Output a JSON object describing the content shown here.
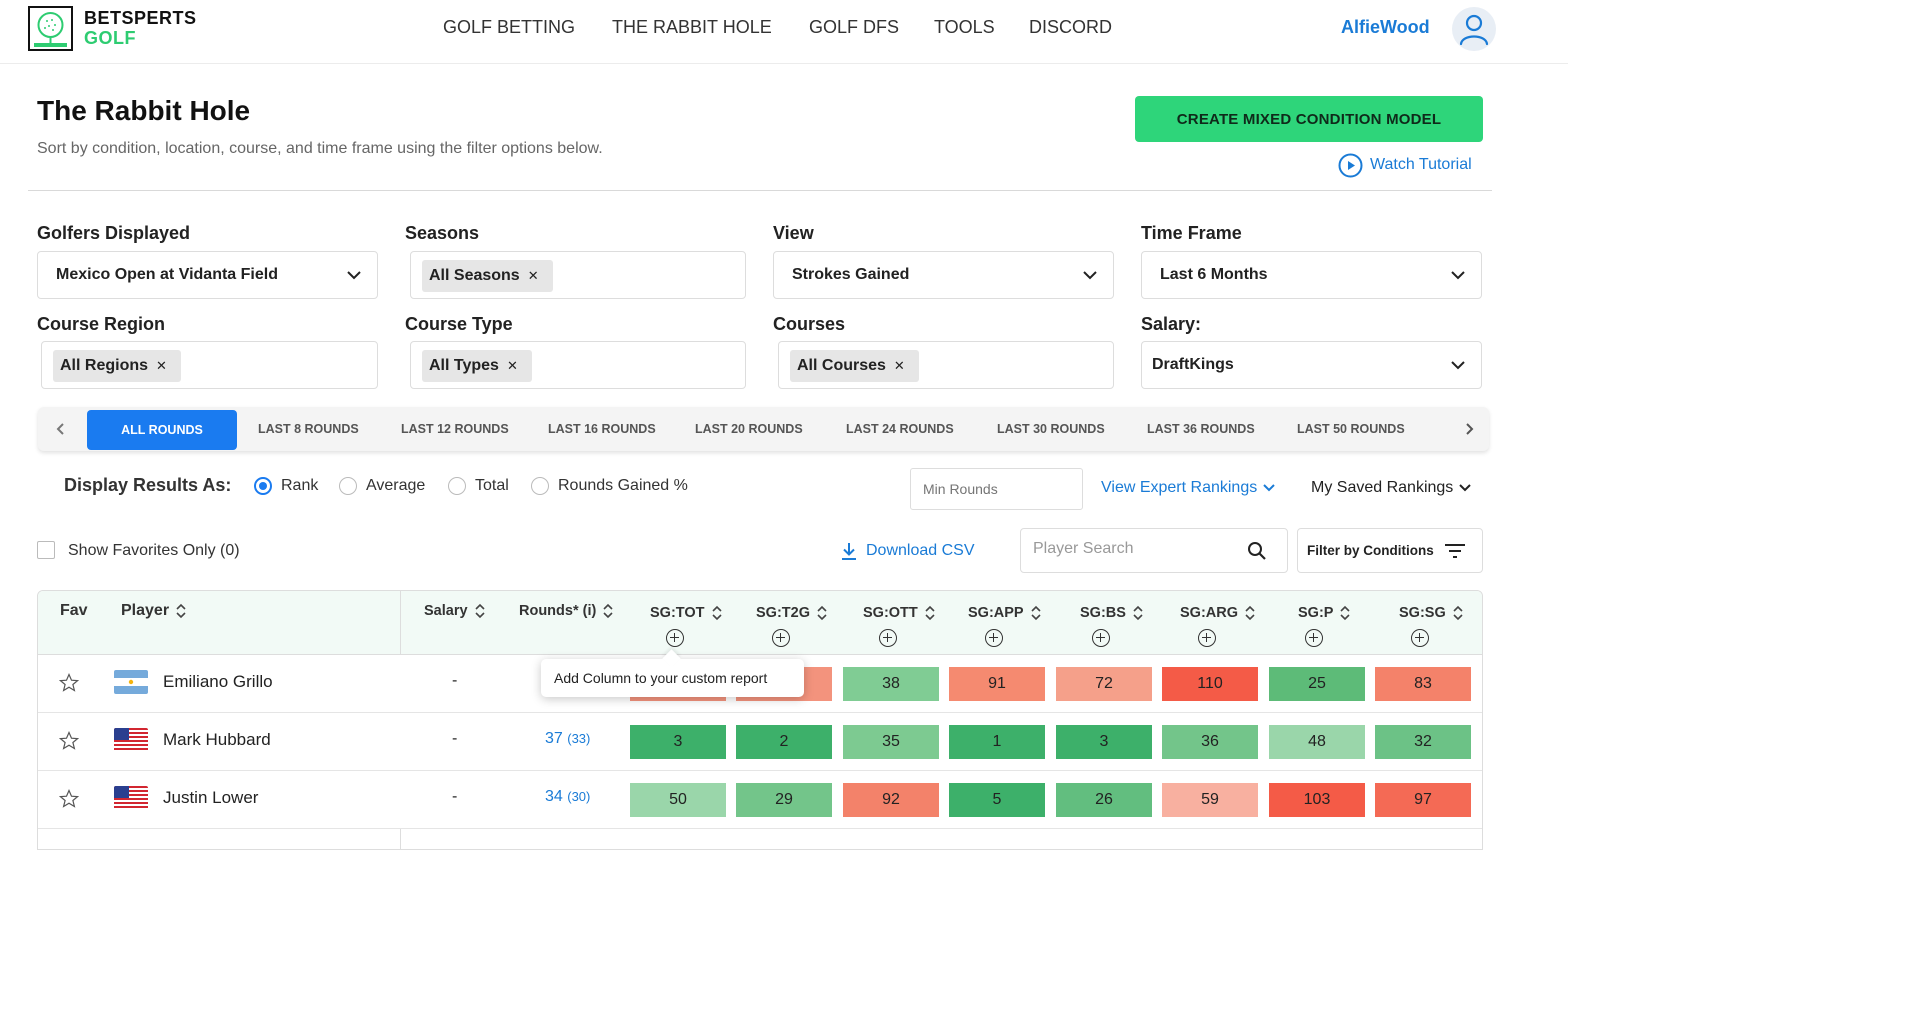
{
  "header": {
    "logo_line1": "BETSPERTS",
    "logo_line2": "GOLF",
    "nav": [
      "GOLF BETTING",
      "THE RABBIT HOLE",
      "GOLF DFS",
      "TOOLS",
      "DISCORD"
    ],
    "username": "AlfieWood"
  },
  "page": {
    "title": "The Rabbit Hole",
    "subtitle": "Sort by condition, location, course, and time frame using the filter options below.",
    "cta_label": "CREATE MIXED CONDITION MODEL",
    "watch_tutorial": "Watch Tutorial"
  },
  "filters": {
    "golfers": {
      "label": "Golfers Displayed",
      "value": "Mexico Open at Vidanta Field"
    },
    "seasons": {
      "label": "Seasons",
      "chip": "All Seasons"
    },
    "view": {
      "label": "View",
      "value": "Strokes Gained"
    },
    "timeframe": {
      "label": "Time Frame",
      "value": "Last 6 Months"
    },
    "region": {
      "label": "Course Region",
      "chip": "All Regions"
    },
    "type": {
      "label": "Course Type",
      "chip": "All Types"
    },
    "courses": {
      "label": "Courses",
      "chip": "All Courses"
    },
    "salary": {
      "label": "Salary:",
      "value": "DraftKings"
    }
  },
  "rounds_tabs": [
    "ALL ROUNDS",
    "LAST 8 ROUNDS",
    "LAST 12 ROUNDS",
    "LAST 16 ROUNDS",
    "LAST 20 ROUNDS",
    "LAST 24 ROUNDS",
    "LAST 30 ROUNDS",
    "LAST 36 ROUNDS",
    "LAST 50 ROUNDS"
  ],
  "display": {
    "label": "Display Results As:",
    "options": [
      "Rank",
      "Average",
      "Total",
      "Rounds Gained %"
    ],
    "selected": "Rank",
    "min_rounds_placeholder": "Min Rounds",
    "expert_rankings": "View Expert Rankings",
    "saved_rankings": "My Saved Rankings"
  },
  "toolbar": {
    "favorites_label": "Show Favorites Only (0)",
    "download_csv": "Download CSV",
    "player_search_placeholder": "Player Search",
    "filter_conditions": "Filter by Conditions"
  },
  "table": {
    "columns": {
      "fav": "Fav",
      "player": "Player",
      "salary": "Salary",
      "rounds": "Rounds* (i)"
    },
    "stat_columns": [
      "SG:TOT",
      "SG:T2G",
      "SG:OTT",
      "SG:APP",
      "SG:BS",
      "SG:ARG",
      "SG:P",
      "SG:SG"
    ],
    "rows": [
      {
        "player": "Emiliano Grillo",
        "country": "argentina",
        "salary": "-",
        "rounds": "",
        "rounds_sub": "",
        "stats": [
          null,
          null,
          38,
          91,
          72,
          110,
          25,
          83
        ]
      },
      {
        "player": "Mark Hubbard",
        "country": "usa",
        "salary": "-",
        "rounds": "37",
        "rounds_sub": "(33)",
        "stats": [
          3,
          2,
          35,
          1,
          3,
          36,
          48,
          32
        ]
      },
      {
        "player": "Justin Lower",
        "country": "usa",
        "salary": "-",
        "rounds": "34",
        "rounds_sub": "(30)",
        "stats": [
          50,
          29,
          92,
          5,
          26,
          59,
          103,
          97
        ]
      }
    ],
    "tooltip": "Add Column to your custom report"
  },
  "colors": {
    "accent": "#1a7bf0",
    "cta": "#2ed57a",
    "link": "#1a7bd6"
  }
}
